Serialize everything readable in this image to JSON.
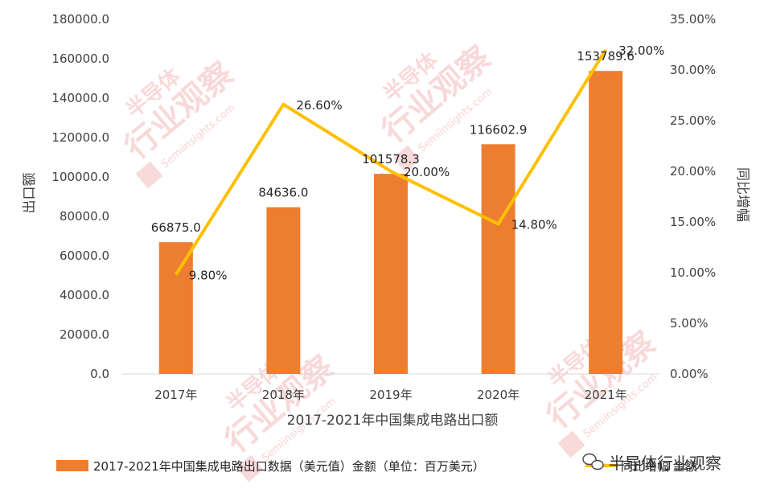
{
  "chart_data": {
    "type": "bar",
    "categories": [
      "2017年",
      "2018年",
      "2019年",
      "2020年",
      "2021年"
    ],
    "series": [
      {
        "name": "2017-2021年中国集成电路出口数据（美元值）金额（单位：百万美元）",
        "type": "bar",
        "axis": "left",
        "values": [
          66875.0,
          84636.0,
          101578.3,
          116602.9,
          153789.6
        ],
        "labels": [
          "66875.0",
          "84636.0",
          "101578.3",
          "116602.9",
          "153789.6"
        ],
        "color": "#ED7D31"
      },
      {
        "name": "同比增幅 金额",
        "type": "line",
        "axis": "right",
        "values": [
          9.8,
          26.6,
          20.0,
          14.8,
          32.0
        ],
        "labels": [
          "9.80%",
          "26.60%",
          "20.00%",
          "14.80%",
          "32.00%"
        ],
        "color": "#FFC000"
      }
    ],
    "xlabel": "2017-2021年中国集成电路出口额",
    "ylabel": "出口额",
    "y2label": "同比增幅",
    "ylim": [
      0,
      180000
    ],
    "y2lim": [
      0,
      35
    ],
    "yticks": [
      "0.0",
      "20000.0",
      "40000.0",
      "60000.0",
      "80000.0",
      "100000.0",
      "120000.0",
      "140000.0",
      "160000.0",
      "180000.0"
    ],
    "y2ticks": [
      "0.00%",
      "5.00%",
      "10.00%",
      "15.00%",
      "20.00%",
      "25.00%",
      "30.00%",
      "35.00%"
    ],
    "grid": false,
    "legend": "bottom"
  },
  "watermark": {
    "brand": "半导体",
    "slogan": "行业观察",
    "url": "Semiinsights.com",
    "signature": "半导体行业观察"
  }
}
